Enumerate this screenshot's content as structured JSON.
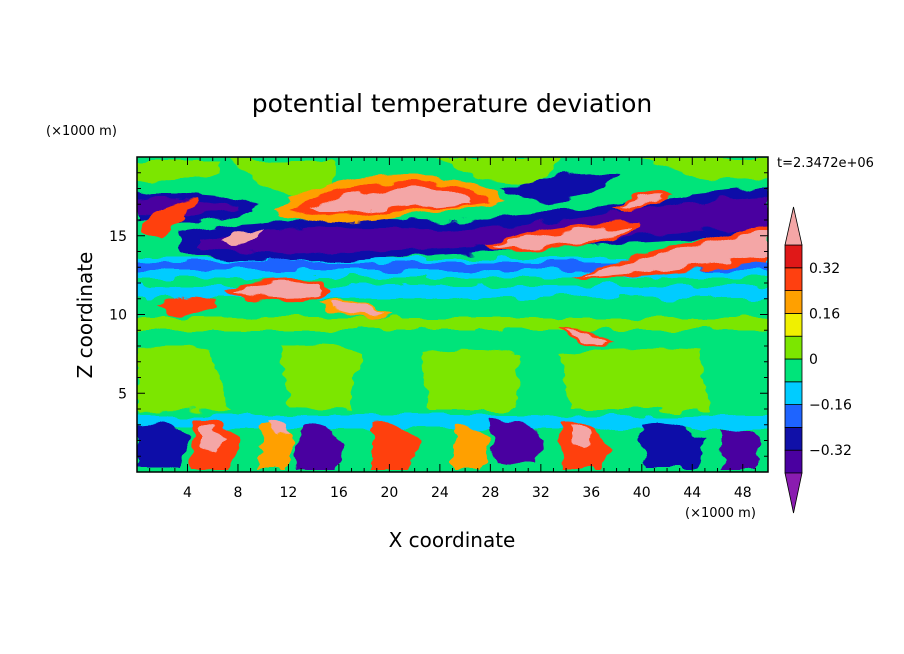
{
  "chart_data": {
    "type": "heatmap",
    "title": "potential temperature deviation",
    "xlabel": "X coordinate",
    "ylabel": "Z coordinate",
    "x_unit": "(×1000 m)",
    "y_unit": "(×1000 m)",
    "time_label": "t=2.3472e+06",
    "xlim": [
      0,
      50
    ],
    "ylim": [
      0,
      20
    ],
    "x_ticks": [
      4,
      8,
      12,
      16,
      20,
      24,
      28,
      32,
      36,
      40,
      44,
      48
    ],
    "y_ticks": [
      5,
      10,
      15
    ],
    "grid": false,
    "colorbar": {
      "levels": [
        -0.4,
        -0.32,
        -0.24,
        -0.16,
        -0.08,
        0,
        0.08,
        0.16,
        0.24,
        0.32,
        0.4
      ],
      "tick_values": [
        0.32,
        0.16,
        0,
        -0.16,
        -0.32
      ],
      "tick_labels": [
        "0.32",
        "0.16",
        "0",
        "−0.16",
        "−0.32"
      ],
      "colors_low_to_high": [
        "#4a00a0",
        "#1010a8",
        "#1e64ff",
        "#00ccff",
        "#00e47a",
        "#7ce600",
        "#f0f000",
        "#ffa000",
        "#ff4010",
        "#e01818"
      ],
      "under_color": "#8a1cb0",
      "over_color": "#f4a6a6",
      "extend": "both"
    }
  }
}
